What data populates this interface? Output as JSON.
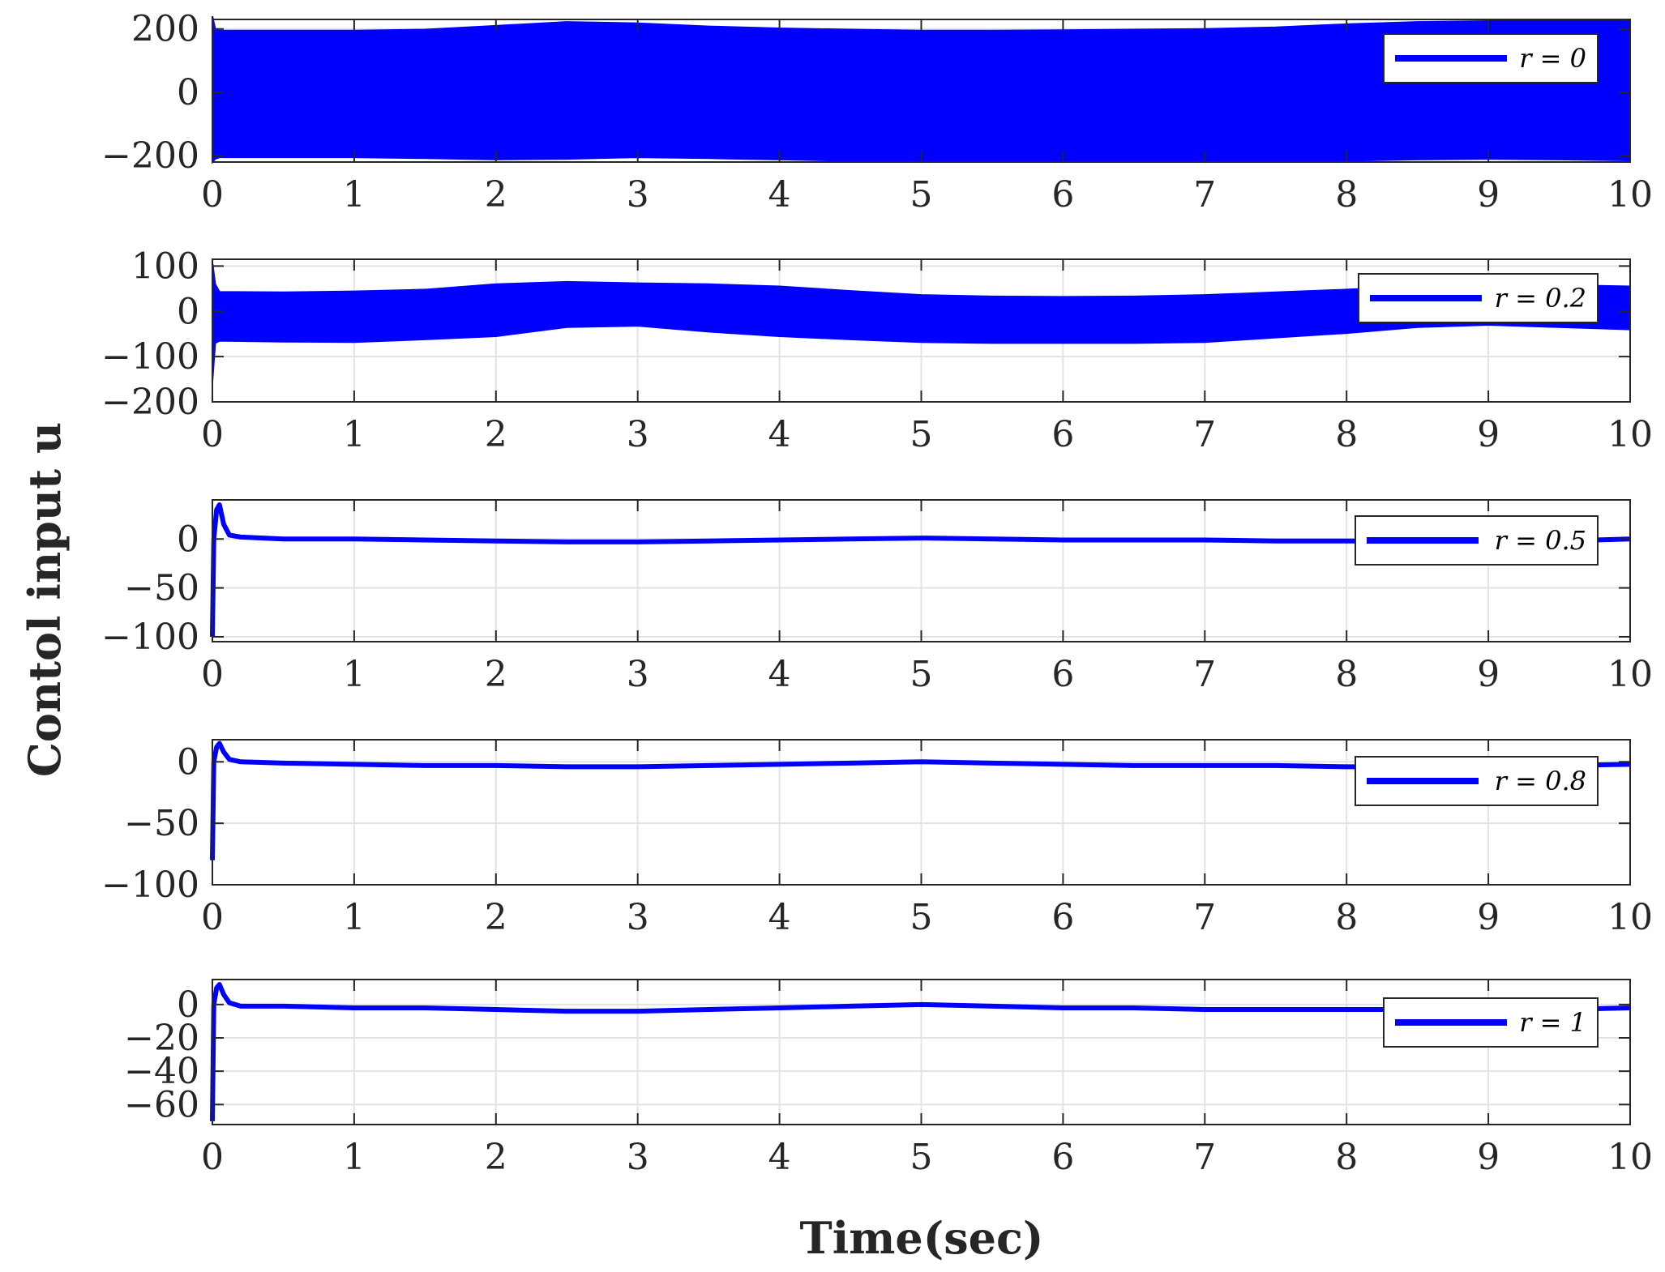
{
  "colors": {
    "series": "#0000ff",
    "axes": "#262626",
    "grid": "#e3e3e3",
    "background": "#ffffff"
  },
  "ylabel": "Contol input u",
  "xlabel": "Time(sec)",
  "chart_data": [
    {
      "type": "line",
      "xlabel": "",
      "ylabel": "",
      "xlim": [
        0,
        10
      ],
      "ylim": [
        -220,
        230
      ],
      "xticks": [
        0,
        1,
        2,
        3,
        4,
        5,
        6,
        7,
        8,
        9,
        10
      ],
      "yticks": [
        -200,
        0,
        200
      ],
      "ytick_labels": [
        "−200",
        "0",
        "200"
      ],
      "grid": true,
      "legend_position": "top-right",
      "series": [
        {
          "name": "r = 0",
          "style": "band",
          "x": [
            0,
            0.02,
            0.05,
            0.5,
            1,
            1.5,
            2,
            2.5,
            3,
            3.5,
            4,
            4.5,
            5,
            5.5,
            6,
            6.5,
            7,
            7.5,
            8,
            8.5,
            9,
            9.5,
            10
          ],
          "upper": [
            240,
            200,
            195,
            195,
            195,
            198,
            210,
            222,
            218,
            208,
            202,
            198,
            195,
            195,
            196,
            198,
            200,
            205,
            215,
            222,
            225,
            226,
            228
          ],
          "lower": [
            -220,
            -210,
            -205,
            -205,
            -205,
            -208,
            -212,
            -210,
            -205,
            -208,
            -212,
            -216,
            -218,
            -219,
            -219,
            -218,
            -218,
            -218,
            -216,
            -212,
            -210,
            -212,
            -215
          ]
        }
      ]
    },
    {
      "type": "line",
      "xlabel": "",
      "ylabel": "",
      "xlim": [
        0,
        10
      ],
      "ylim": [
        -200,
        115
      ],
      "xticks": [
        0,
        1,
        2,
        3,
        4,
        5,
        6,
        7,
        8,
        9,
        10
      ],
      "yticks": [
        -200,
        -100,
        0,
        100
      ],
      "ytick_labels": [
        "−200",
        "−100",
        "0",
        "100"
      ],
      "grid": true,
      "legend_position": "top-right",
      "series": [
        {
          "name": "r = 0.2",
          "style": "band",
          "x": [
            0,
            0.02,
            0.05,
            0.5,
            1,
            1.5,
            2,
            2.5,
            3,
            3.5,
            4,
            4.5,
            5,
            5.5,
            6,
            6.5,
            7,
            7.5,
            8,
            8.5,
            9,
            9.5,
            10
          ],
          "upper": [
            108,
            60,
            43,
            42,
            44,
            48,
            60,
            65,
            62,
            60,
            55,
            45,
            36,
            33,
            32,
            33,
            36,
            42,
            48,
            55,
            58,
            58,
            55
          ],
          "lower": [
            -155,
            -70,
            -65,
            -67,
            -68,
            -62,
            -55,
            -35,
            -32,
            -45,
            -55,
            -62,
            -68,
            -70,
            -70,
            -70,
            -68,
            -58,
            -48,
            -35,
            -30,
            -35,
            -40
          ]
        }
      ]
    },
    {
      "type": "line",
      "xlabel": "",
      "ylabel": "",
      "xlim": [
        0,
        10
      ],
      "ylim": [
        -105,
        40
      ],
      "xticks": [
        0,
        1,
        2,
        3,
        4,
        5,
        6,
        7,
        8,
        9,
        10
      ],
      "yticks": [
        -100,
        -50,
        0
      ],
      "ytick_labels": [
        "−100",
        "−50",
        "0"
      ],
      "grid": true,
      "legend_position": "right",
      "series": [
        {
          "name": "r = 0.5",
          "style": "line",
          "x": [
            0,
            0.01,
            0.03,
            0.05,
            0.08,
            0.12,
            0.2,
            0.5,
            1,
            1.5,
            2,
            2.5,
            3,
            3.5,
            4,
            4.5,
            5,
            5.5,
            6,
            6.5,
            7,
            7.5,
            8,
            8.5,
            9,
            9.5,
            10
          ],
          "y": [
            -100,
            0,
            30,
            35,
            15,
            4,
            2,
            0,
            0,
            -1,
            -2,
            -3,
            -3,
            -2,
            -1,
            0,
            1,
            0,
            -1,
            -1,
            -1,
            -2,
            -2,
            -2,
            -2,
            -2,
            0
          ]
        }
      ]
    },
    {
      "type": "line",
      "xlabel": "",
      "ylabel": "",
      "xlim": [
        0,
        10
      ],
      "ylim": [
        -100,
        18
      ],
      "xticks": [
        0,
        1,
        2,
        3,
        4,
        5,
        6,
        7,
        8,
        9,
        10
      ],
      "yticks": [
        -100,
        -50,
        0
      ],
      "ytick_labels": [
        "−100",
        "−50",
        "0"
      ],
      "grid": true,
      "legend_position": "right",
      "series": [
        {
          "name": "r = 0.8",
          "style": "line",
          "x": [
            0,
            0.01,
            0.03,
            0.05,
            0.08,
            0.12,
            0.2,
            0.5,
            1,
            1.5,
            2,
            2.5,
            3,
            3.5,
            4,
            4.5,
            5,
            5.5,
            6,
            6.5,
            7,
            7.5,
            8,
            8.5,
            9,
            9.5,
            10
          ],
          "y": [
            -80,
            0,
            12,
            15,
            8,
            2,
            0,
            -1,
            -2,
            -3,
            -3,
            -4,
            -4,
            -3,
            -2,
            -1,
            0,
            -1,
            -2,
            -3,
            -3,
            -3,
            -4,
            -4,
            -4,
            -3,
            -2
          ]
        }
      ]
    },
    {
      "type": "line",
      "xlabel": "",
      "ylabel": "",
      "xlim": [
        0,
        10
      ],
      "ylim": [
        -72,
        15
      ],
      "xticks": [
        0,
        1,
        2,
        3,
        4,
        5,
        6,
        7,
        8,
        9,
        10
      ],
      "yticks": [
        -60,
        -40,
        -20,
        0
      ],
      "ytick_labels": [
        "−60",
        "−40",
        "−20",
        "0"
      ],
      "grid": true,
      "legend_position": "right",
      "series": [
        {
          "name": "r = 1",
          "style": "line",
          "x": [
            0,
            0.01,
            0.03,
            0.05,
            0.08,
            0.12,
            0.2,
            0.5,
            1,
            1.5,
            2,
            2.5,
            3,
            3.5,
            4,
            4.5,
            5,
            5.5,
            6,
            6.5,
            7,
            7.5,
            8,
            8.5,
            9,
            9.5,
            10
          ],
          "y": [
            -70,
            0,
            10,
            12,
            6,
            1,
            -1,
            -1,
            -2,
            -2,
            -3,
            -4,
            -4,
            -3,
            -2,
            -1,
            0,
            -1,
            -2,
            -2,
            -3,
            -3,
            -3,
            -3,
            -3,
            -3,
            -2
          ]
        }
      ]
    }
  ]
}
